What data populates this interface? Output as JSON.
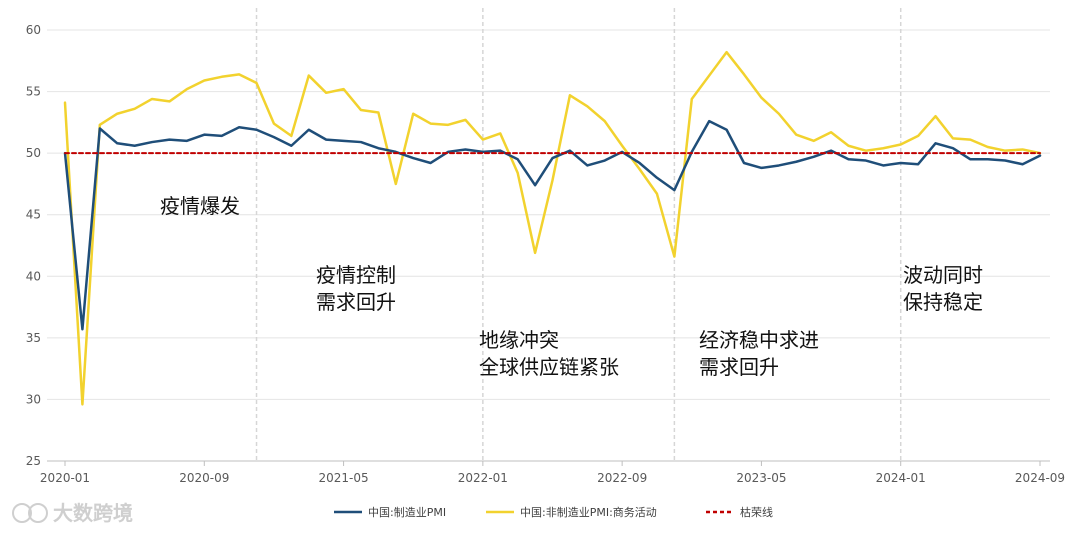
{
  "chart_data": {
    "type": "line",
    "title": "",
    "xlabel": "",
    "ylabel": "",
    "ylim": [
      25,
      60
    ],
    "yticks": [
      25,
      30,
      35,
      40,
      45,
      50,
      55,
      60
    ],
    "x_tick_labels": [
      "2020-01",
      "2020-09",
      "2021-05",
      "2022-01",
      "2022-09",
      "2023-05",
      "2024-01",
      "2024-09"
    ],
    "x": [
      "2020-01",
      "2020-02",
      "2020-03",
      "2020-04",
      "2020-05",
      "2020-06",
      "2020-07",
      "2020-08",
      "2020-09",
      "2020-10",
      "2020-11",
      "2020-12",
      "2021-01",
      "2021-02",
      "2021-03",
      "2021-04",
      "2021-05",
      "2021-06",
      "2021-07",
      "2021-08",
      "2021-09",
      "2021-10",
      "2021-11",
      "2021-12",
      "2022-01",
      "2022-02",
      "2022-03",
      "2022-04",
      "2022-05",
      "2022-06",
      "2022-07",
      "2022-08",
      "2022-09",
      "2022-10",
      "2022-11",
      "2022-12",
      "2023-01",
      "2023-02",
      "2023-03",
      "2023-04",
      "2023-05",
      "2023-06",
      "2023-07",
      "2023-08",
      "2023-09",
      "2023-10",
      "2023-11",
      "2023-12",
      "2024-01",
      "2024-02",
      "2024-03",
      "2024-04",
      "2024-05",
      "2024-06",
      "2024-07",
      "2024-08",
      "2024-09"
    ],
    "series": [
      {
        "name": "中国:制造业PMI",
        "color": "#1f4e79",
        "values": [
          50.0,
          35.7,
          52.0,
          50.8,
          50.6,
          50.9,
          51.1,
          51.0,
          51.5,
          51.4,
          52.1,
          51.9,
          51.3,
          50.6,
          51.9,
          51.1,
          51.0,
          50.9,
          50.4,
          50.1,
          49.6,
          49.2,
          50.1,
          50.3,
          50.1,
          50.2,
          49.5,
          47.4,
          49.6,
          50.2,
          49.0,
          49.4,
          50.1,
          49.2,
          48.0,
          47.0,
          50.1,
          52.6,
          51.9,
          49.2,
          48.8,
          49.0,
          49.3,
          49.7,
          50.2,
          49.5,
          49.4,
          49.0,
          49.2,
          49.1,
          50.8,
          50.4,
          49.5,
          49.5,
          49.4,
          49.1,
          49.8
        ]
      },
      {
        "name": "中国:非制造业PMI:商务活动",
        "color": "#f2d22e",
        "values": [
          54.1,
          29.6,
          52.3,
          53.2,
          53.6,
          54.4,
          54.2,
          55.2,
          55.9,
          56.2,
          56.4,
          55.7,
          52.4,
          51.4,
          56.3,
          54.9,
          55.2,
          53.5,
          53.3,
          47.5,
          53.2,
          52.4,
          52.3,
          52.7,
          51.1,
          51.6,
          48.4,
          41.9,
          47.8,
          54.7,
          53.8,
          52.6,
          50.6,
          48.7,
          46.7,
          41.6,
          54.4,
          56.3,
          58.2,
          56.4,
          54.5,
          53.2,
          51.5,
          51.0,
          51.7,
          50.6,
          50.2,
          50.4,
          50.7,
          51.4,
          53.0,
          51.2,
          51.1,
          50.5,
          50.2,
          50.3,
          50.0
        ]
      },
      {
        "name": "枯荣线",
        "color": "#c00000",
        "style": "dashed",
        "values": [
          50,
          50,
          50,
          50,
          50,
          50,
          50,
          50,
          50,
          50,
          50,
          50,
          50,
          50,
          50,
          50,
          50,
          50,
          50,
          50,
          50,
          50,
          50,
          50,
          50,
          50,
          50,
          50,
          50,
          50,
          50,
          50,
          50,
          50,
          50,
          50,
          50,
          50,
          50,
          50,
          50,
          50,
          50,
          50,
          50,
          50,
          50,
          50,
          50,
          50,
          50,
          50,
          50,
          50,
          50,
          50,
          50
        ]
      }
    ],
    "phase_dividers": [
      "2020-12",
      "2022-01",
      "2022-12",
      "2024-01"
    ],
    "annotations": [
      {
        "lines": [
          "疫情爆发"
        ]
      },
      {
        "lines": [
          "疫情控制",
          "需求回升"
        ]
      },
      {
        "lines": [
          "地缘冲突",
          "全球供应链紧张"
        ]
      },
      {
        "lines": [
          "经济稳中求进",
          "需求回升"
        ]
      },
      {
        "lines": [
          "波动同时",
          "保持稳定"
        ]
      }
    ],
    "legend_position": "bottom",
    "grid": true
  },
  "watermark": "大数跨境"
}
